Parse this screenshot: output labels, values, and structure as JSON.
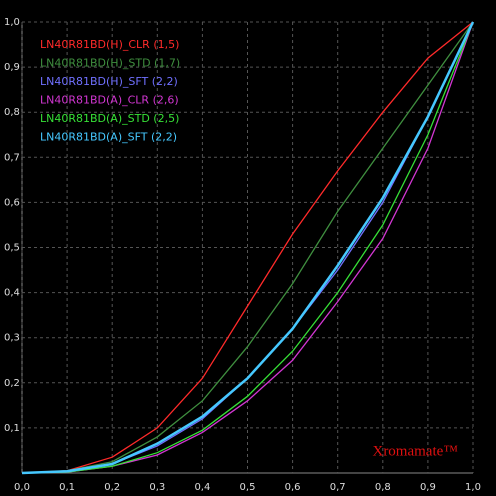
{
  "chart_data": {
    "type": "line",
    "x": [
      0,
      0.1,
      0.2,
      0.3,
      0.4,
      0.5,
      0.6,
      0.7,
      0.8,
      0.9,
      1
    ],
    "series": [
      {
        "name": "LN40R81BD(H)_CLR (1,5)",
        "color": "#ff2a2a",
        "values": [
          0,
          0.005,
          0.035,
          0.1,
          0.21,
          0.37,
          0.53,
          0.67,
          0.8,
          0.92,
          1
        ]
      },
      {
        "name": "LN40R81BD(H)_STD (1,7)",
        "color": "#3f8f3f",
        "values": [
          0,
          0.005,
          0.025,
          0.08,
          0.16,
          0.28,
          0.42,
          0.58,
          0.72,
          0.86,
          1
        ]
      },
      {
        "name": "LN40R81BD(H)_SFT (2,2)",
        "color": "#7070ff",
        "values": [
          0,
          0.004,
          0.02,
          0.06,
          0.12,
          0.21,
          0.32,
          0.45,
          0.6,
          0.79,
          1
        ]
      },
      {
        "name": "LN40R81BD(A)_CLR (2,6)",
        "color": "#d236d2",
        "values": [
          0,
          0.002,
          0.015,
          0.04,
          0.09,
          0.16,
          0.25,
          0.38,
          0.52,
          0.72,
          1
        ]
      },
      {
        "name": "LN40R81BD(A)_STD (2,5)",
        "color": "#36e036",
        "values": [
          0,
          0.002,
          0.015,
          0.045,
          0.095,
          0.17,
          0.27,
          0.4,
          0.55,
          0.75,
          1
        ]
      },
      {
        "name": "LN40R81BD(A)_SFT (2,2)",
        "color": "#46c8ff",
        "values": [
          0,
          0.004,
          0.02,
          0.065,
          0.125,
          0.21,
          0.32,
          0.46,
          0.61,
          0.79,
          1
        ]
      }
    ],
    "xlim": [
      0,
      1
    ],
    "ylim": [
      0,
      1
    ],
    "xticks": [
      {
        "value": 0,
        "label": "0,0"
      },
      {
        "value": 0.1,
        "label": "0,1"
      },
      {
        "value": 0.2,
        "label": "0,2"
      },
      {
        "value": 0.3,
        "label": "0,3"
      },
      {
        "value": 0.4,
        "label": "0,4"
      },
      {
        "value": 0.5,
        "label": "0,5"
      },
      {
        "value": 0.6,
        "label": "0,6"
      },
      {
        "value": 0.7,
        "label": "0,7"
      },
      {
        "value": 0.8,
        "label": "0,8"
      },
      {
        "value": 0.9,
        "label": "0,9"
      },
      {
        "value": 1,
        "label": "1,0"
      }
    ],
    "yticks": [
      {
        "value": 0.1,
        "label": "0,1"
      },
      {
        "value": 0.2,
        "label": "0,2"
      },
      {
        "value": 0.3,
        "label": "0,3"
      },
      {
        "value": 0.4,
        "label": "0,4"
      },
      {
        "value": 0.5,
        "label": "0,5"
      },
      {
        "value": 0.6,
        "label": "0,6"
      },
      {
        "value": 0.7,
        "label": "0,7"
      },
      {
        "value": 0.8,
        "label": "0,8"
      },
      {
        "value": 0.9,
        "label": "0,9"
      },
      {
        "value": 1,
        "label": "1,0"
      }
    ],
    "grid": true,
    "annotation": "Xromamate™"
  }
}
